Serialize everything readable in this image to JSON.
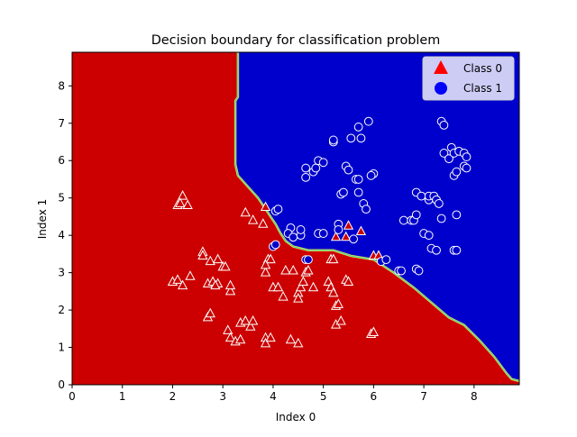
{
  "chart_data": {
    "type": "scatter",
    "title": "Decision boundary for classification problem",
    "xlabel": "Index 0",
    "ylabel": "Index 1",
    "xlim": [
      0,
      8.9
    ],
    "ylim": [
      0,
      8.9
    ],
    "xticks": [
      "0",
      "1",
      "2",
      "3",
      "4",
      "5",
      "6",
      "7",
      "8"
    ],
    "yticks": [
      "0",
      "1",
      "2",
      "3",
      "4",
      "5",
      "6",
      "7",
      "8"
    ],
    "grid": false,
    "legend_position": "top-right",
    "background_regions": [
      {
        "name": "Class 0 region",
        "color": "#cc0000"
      },
      {
        "name": "Class 1 region",
        "color": "#0000cc"
      }
    ],
    "decision_boundary": [
      [
        3.3,
        8.9
      ],
      [
        3.3,
        7.7
      ],
      [
        3.25,
        7.6
      ],
      [
        3.25,
        5.9
      ],
      [
        3.3,
        5.6
      ],
      [
        3.5,
        5.3
      ],
      [
        3.7,
        5.0
      ],
      [
        3.85,
        4.7
      ],
      [
        3.95,
        4.5
      ],
      [
        4.05,
        4.3
      ],
      [
        4.15,
        4.05
      ],
      [
        4.25,
        3.85
      ],
      [
        4.4,
        3.7
      ],
      [
        4.7,
        3.6
      ],
      [
        5.2,
        3.6
      ],
      [
        5.55,
        3.45
      ],
      [
        6.0,
        3.35
      ],
      [
        6.4,
        3.0
      ],
      [
        6.8,
        2.6
      ],
      [
        7.15,
        2.2
      ],
      [
        7.5,
        1.8
      ],
      [
        7.8,
        1.6
      ],
      [
        8.1,
        1.2
      ],
      [
        8.4,
        0.75
      ],
      [
        8.65,
        0.3
      ],
      [
        8.75,
        0.15
      ],
      [
        8.9,
        0.1
      ]
    ],
    "series": [
      {
        "name": "Class 0",
        "marker": "triangle",
        "color": "#cc0000",
        "legend_color": "#ff0000",
        "points": [
          [
            2.2,
            5.05
          ],
          [
            2.1,
            4.8
          ],
          [
            2.15,
            4.85
          ],
          [
            2.3,
            4.8
          ],
          [
            3.45,
            4.6
          ],
          [
            3.6,
            4.4
          ],
          [
            3.8,
            4.3
          ],
          [
            3.85,
            4.75
          ],
          [
            2.0,
            2.75
          ],
          [
            2.1,
            2.8
          ],
          [
            2.2,
            2.65
          ],
          [
            2.35,
            2.9
          ],
          [
            2.7,
            2.7
          ],
          [
            2.8,
            2.75
          ],
          [
            2.75,
            3.3
          ],
          [
            2.9,
            3.35
          ],
          [
            3.0,
            3.15
          ],
          [
            3.05,
            3.15
          ],
          [
            2.6,
            3.55
          ],
          [
            2.6,
            3.45
          ],
          [
            3.15,
            2.5
          ],
          [
            3.15,
            2.65
          ],
          [
            2.9,
            2.7
          ],
          [
            2.85,
            2.65
          ],
          [
            2.7,
            1.8
          ],
          [
            2.75,
            1.9
          ],
          [
            3.1,
            1.45
          ],
          [
            3.15,
            1.25
          ],
          [
            3.25,
            1.15
          ],
          [
            3.35,
            1.2
          ],
          [
            3.35,
            1.65
          ],
          [
            3.45,
            1.7
          ],
          [
            3.55,
            1.55
          ],
          [
            3.6,
            1.7
          ],
          [
            3.85,
            1.25
          ],
          [
            3.85,
            1.1
          ],
          [
            3.95,
            1.25
          ],
          [
            4.35,
            1.2
          ],
          [
            4.5,
            1.1
          ],
          [
            3.85,
            3.0
          ],
          [
            3.9,
            3.35
          ],
          [
            3.95,
            3.35
          ],
          [
            3.85,
            3.2
          ],
          [
            4.0,
            2.6
          ],
          [
            4.1,
            2.6
          ],
          [
            4.2,
            2.35
          ],
          [
            4.25,
            3.05
          ],
          [
            4.4,
            3.05
          ],
          [
            4.5,
            2.45
          ],
          [
            4.55,
            2.6
          ],
          [
            4.6,
            2.75
          ],
          [
            4.65,
            3.0
          ],
          [
            4.7,
            3.05
          ],
          [
            4.8,
            2.6
          ],
          [
            4.5,
            2.3
          ],
          [
            5.1,
            2.75
          ],
          [
            5.15,
            2.6
          ],
          [
            5.2,
            2.45
          ],
          [
            5.25,
            2.1
          ],
          [
            5.3,
            2.15
          ],
          [
            5.25,
            1.6
          ],
          [
            5.35,
            1.7
          ],
          [
            5.45,
            2.8
          ],
          [
            5.5,
            2.75
          ],
          [
            5.15,
            3.35
          ],
          [
            5.2,
            3.35
          ],
          [
            5.95,
            1.35
          ],
          [
            6.0,
            1.4
          ],
          [
            5.25,
            3.95
          ],
          [
            5.45,
            3.95
          ],
          [
            5.5,
            4.25
          ],
          [
            5.75,
            4.1
          ],
          [
            6.0,
            3.45
          ],
          [
            6.1,
            3.45
          ]
        ]
      },
      {
        "name": "Class 1",
        "marker": "circle",
        "color": "#0000cc",
        "legend_color": "#0000ff",
        "points": [
          [
            4.0,
            3.7
          ],
          [
            4.05,
            3.75
          ],
          [
            4.05,
            4.65
          ],
          [
            4.1,
            4.7
          ],
          [
            4.35,
            4.2
          ],
          [
            4.3,
            4.05
          ],
          [
            4.4,
            3.95
          ],
          [
            4.55,
            4.0
          ],
          [
            4.55,
            4.15
          ],
          [
            4.65,
            3.35
          ],
          [
            4.7,
            3.35
          ],
          [
            4.65,
            5.55
          ],
          [
            4.65,
            5.8
          ],
          [
            4.8,
            5.7
          ],
          [
            4.85,
            5.8
          ],
          [
            4.9,
            6.0
          ],
          [
            5.0,
            5.95
          ],
          [
            4.9,
            4.05
          ],
          [
            5.0,
            4.05
          ],
          [
            5.2,
            6.5
          ],
          [
            5.2,
            6.55
          ],
          [
            5.3,
            4.3
          ],
          [
            5.3,
            4.15
          ],
          [
            5.35,
            5.1
          ],
          [
            5.4,
            5.15
          ],
          [
            5.45,
            5.85
          ],
          [
            5.5,
            5.75
          ],
          [
            5.55,
            6.6
          ],
          [
            5.6,
            3.9
          ],
          [
            5.65,
            5.5
          ],
          [
            5.7,
            5.5
          ],
          [
            5.7,
            5.15
          ],
          [
            5.75,
            6.6
          ],
          [
            5.7,
            6.9
          ],
          [
            5.8,
            4.85
          ],
          [
            5.85,
            4.7
          ],
          [
            5.9,
            7.05
          ],
          [
            6.0,
            5.65
          ],
          [
            5.95,
            5.6
          ],
          [
            6.15,
            3.3
          ],
          [
            6.25,
            3.35
          ],
          [
            6.5,
            3.05
          ],
          [
            6.55,
            3.05
          ],
          [
            6.6,
            4.4
          ],
          [
            6.75,
            4.4
          ],
          [
            6.8,
            4.4
          ],
          [
            6.85,
            4.55
          ],
          [
            6.85,
            5.15
          ],
          [
            6.95,
            5.05
          ],
          [
            6.85,
            3.1
          ],
          [
            6.9,
            3.05
          ],
          [
            7.0,
            4.05
          ],
          [
            7.1,
            4.0
          ],
          [
            7.1,
            4.95
          ],
          [
            7.1,
            5.05
          ],
          [
            7.2,
            5.05
          ],
          [
            7.25,
            4.95
          ],
          [
            7.15,
            3.65
          ],
          [
            7.25,
            3.6
          ],
          [
            7.3,
            4.85
          ],
          [
            7.35,
            4.45
          ],
          [
            7.35,
            7.05
          ],
          [
            7.4,
            6.95
          ],
          [
            7.4,
            6.2
          ],
          [
            7.5,
            6.05
          ],
          [
            7.55,
            6.35
          ],
          [
            7.6,
            6.2
          ],
          [
            7.6,
            5.6
          ],
          [
            7.65,
            5.7
          ],
          [
            7.6,
            3.6
          ],
          [
            7.65,
            3.6
          ],
          [
            7.65,
            4.55
          ],
          [
            7.7,
            6.25
          ],
          [
            7.8,
            6.2
          ],
          [
            7.85,
            6.1
          ],
          [
            7.8,
            5.85
          ],
          [
            7.85,
            5.8
          ]
        ]
      }
    ]
  }
}
